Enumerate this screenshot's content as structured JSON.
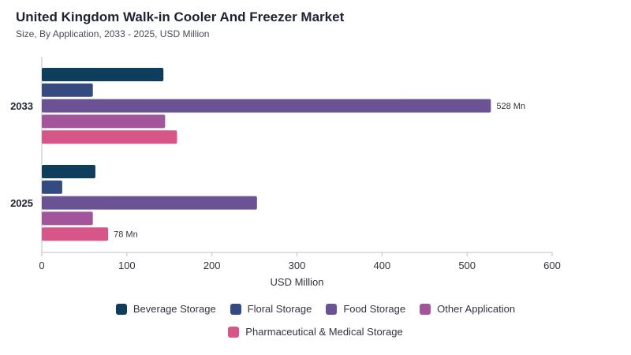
{
  "title": "United Kingdom Walk-in Cooler And Freezer Market",
  "subtitle": "Size, By Application, 2033 - 2025, USD Million",
  "chart_data": {
    "type": "bar",
    "orientation": "horizontal",
    "categories": [
      "2033",
      "2025"
    ],
    "series": [
      {
        "name": "Beverage Storage",
        "color": "#0f3d5c",
        "values": [
          143,
          63
        ]
      },
      {
        "name": "Floral Storage",
        "color": "#344a80",
        "values": [
          60,
          24
        ]
      },
      {
        "name": "Food Storage",
        "color": "#6a5294",
        "values": [
          528,
          253
        ]
      },
      {
        "name": "Other Application",
        "color": "#a3559c",
        "values": [
          145,
          60
        ]
      },
      {
        "name": "Pharmaceutical & Medical Storage",
        "color": "#d6568a",
        "values": [
          159,
          78
        ]
      }
    ],
    "data_labels": [
      {
        "category": "2033",
        "series": "Food Storage",
        "text": "528 Mn"
      },
      {
        "category": "2025",
        "series": "Pharmaceutical & Medical Storage",
        "text": "78 Mn"
      }
    ],
    "xlabel": "USD Million",
    "xlim": [
      0,
      600
    ],
    "xticks": [
      0,
      100,
      200,
      300,
      400,
      500,
      600
    ],
    "grid": false,
    "legend_position": "bottom"
  }
}
